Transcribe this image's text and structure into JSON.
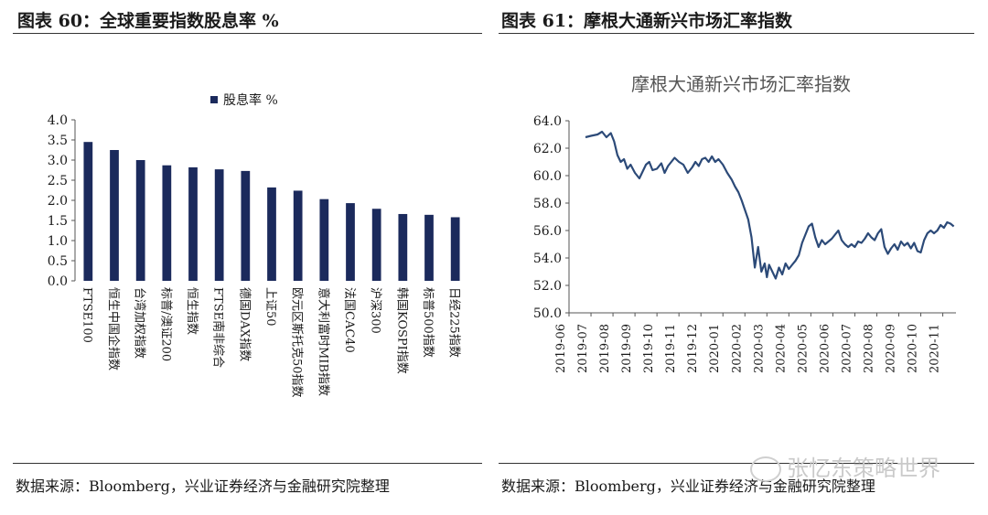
{
  "left": {
    "figure_title": "图表 60：全球重要指数股息率 %",
    "source": "数据来源：Bloomberg，兴业证券经济与金融研究院整理"
  },
  "right": {
    "figure_title": "图表 61：摩根大通新兴市场汇率指数",
    "source": "数据来源：Bloomberg，兴业证券经济与金融研究院整理"
  },
  "watermark": "张忆东策略世界",
  "colors": {
    "bar": "#1b2a5c",
    "line": "#2c4a78",
    "text": "#1a1a1a",
    "axis": "#555555"
  },
  "chart_data": [
    {
      "type": "bar",
      "legend": "股息率 %",
      "categories": [
        "FTSE100",
        "恒生中国企指数",
        "台湾加权指数",
        "标普/澳证200",
        "恒生指数",
        "FTSE南非综合",
        "德国DAX指数",
        "上证50",
        "欧元区斯托克50指数",
        "意大利富时MIB指数",
        "法国CAC40",
        "沪深300",
        "韩国KOSPI指数",
        "标普500指数",
        "日经225指数"
      ],
      "values": [
        3.45,
        3.25,
        3.0,
        2.87,
        2.82,
        2.77,
        2.73,
        2.32,
        2.24,
        2.03,
        1.93,
        1.79,
        1.66,
        1.64,
        1.58
      ],
      "ylim": [
        0,
        4
      ],
      "yticks": [
        "4.0",
        "3.5",
        "3.0",
        "2.5",
        "2.0",
        "1.5",
        "1.0",
        "0.5",
        "0.0"
      ],
      "legend_position": "top-center"
    },
    {
      "type": "line",
      "title": "摩根大通新兴市场汇率指数",
      "ylim": [
        50,
        64
      ],
      "yticks": [
        "64.0",
        "62.0",
        "60.0",
        "58.0",
        "56.0",
        "54.0",
        "52.0",
        "50.0"
      ],
      "xticks": [
        "2019-06",
        "2019-07",
        "2019-08",
        "2019-09",
        "2019-10",
        "2019-11",
        "2019-12",
        "2020-01",
        "2020-02",
        "2020-03",
        "2020-04",
        "2020-05",
        "2020-06",
        "2020-07",
        "2020-08",
        "2020-09",
        "2020-10",
        "2020-11"
      ],
      "x_months_range": [
        0,
        17.6
      ],
      "series": [
        {
          "x": [
            0.75,
            1.0,
            1.3,
            1.5,
            1.7,
            1.9,
            2.05,
            2.2,
            2.35,
            2.5,
            2.65,
            2.8,
            3.0,
            3.2,
            3.35,
            3.5,
            3.65,
            3.8,
            4.0,
            4.2,
            4.35,
            4.5,
            4.65,
            4.8,
            5.0,
            5.2,
            5.4,
            5.6,
            5.75,
            5.9,
            6.05,
            6.2,
            6.35,
            6.5,
            6.65,
            6.8,
            7.0,
            7.2,
            7.4,
            7.55,
            7.7,
            7.85,
            8.0,
            8.15,
            8.3,
            8.45,
            8.6,
            8.75,
            8.9,
            9.0,
            9.1,
            9.25,
            9.4,
            9.55,
            9.7,
            9.85,
            10.0,
            10.15,
            10.3,
            10.45,
            10.6,
            10.75,
            10.9,
            11.05,
            11.2,
            11.35,
            11.5,
            11.65,
            11.8,
            11.95,
            12.1,
            12.25,
            12.4,
            12.55,
            12.7,
            12.85,
            13.0,
            13.15,
            13.3,
            13.45,
            13.6,
            13.75,
            13.9,
            14.05,
            14.2,
            14.35,
            14.5,
            14.65,
            14.8,
            14.95,
            15.1,
            15.25,
            15.4,
            15.55,
            15.7,
            15.85,
            16.0,
            16.15,
            16.3,
            16.45,
            16.6,
            16.75,
            16.9,
            17.05,
            17.2,
            17.35,
            17.5
          ],
          "y": [
            62.8,
            62.9,
            63.0,
            63.2,
            62.8,
            63.1,
            62.5,
            61.5,
            61.0,
            61.2,
            60.5,
            60.8,
            60.2,
            59.8,
            60.3,
            60.8,
            61.0,
            60.4,
            60.5,
            60.9,
            60.2,
            60.7,
            61.0,
            61.3,
            61.0,
            60.8,
            60.2,
            60.6,
            61.0,
            60.7,
            61.2,
            61.3,
            61.0,
            61.4,
            61.0,
            61.2,
            60.8,
            60.2,
            59.7,
            59.2,
            58.8,
            58.2,
            57.5,
            56.8,
            55.5,
            53.3,
            54.8,
            53.0,
            53.6,
            52.6,
            53.5,
            53.0,
            52.5,
            53.3,
            52.8,
            53.6,
            53.2,
            53.5,
            53.8,
            54.2,
            55.1,
            55.7,
            56.3,
            56.5,
            55.5,
            54.8,
            55.3,
            55.0,
            55.2,
            55.4,
            55.7,
            56.0,
            55.3,
            55.0,
            54.8,
            55.0,
            54.8,
            55.2,
            55.1,
            55.4,
            55.8,
            55.5,
            55.3,
            55.8,
            56.1,
            54.8,
            54.3,
            54.7,
            55.0,
            54.6,
            55.2,
            54.9,
            55.1,
            54.7,
            55.1,
            54.5,
            54.4,
            55.3,
            55.8,
            56.0,
            55.8,
            56.0,
            56.4,
            56.2,
            56.6,
            56.5,
            56.3
          ]
        }
      ]
    }
  ]
}
